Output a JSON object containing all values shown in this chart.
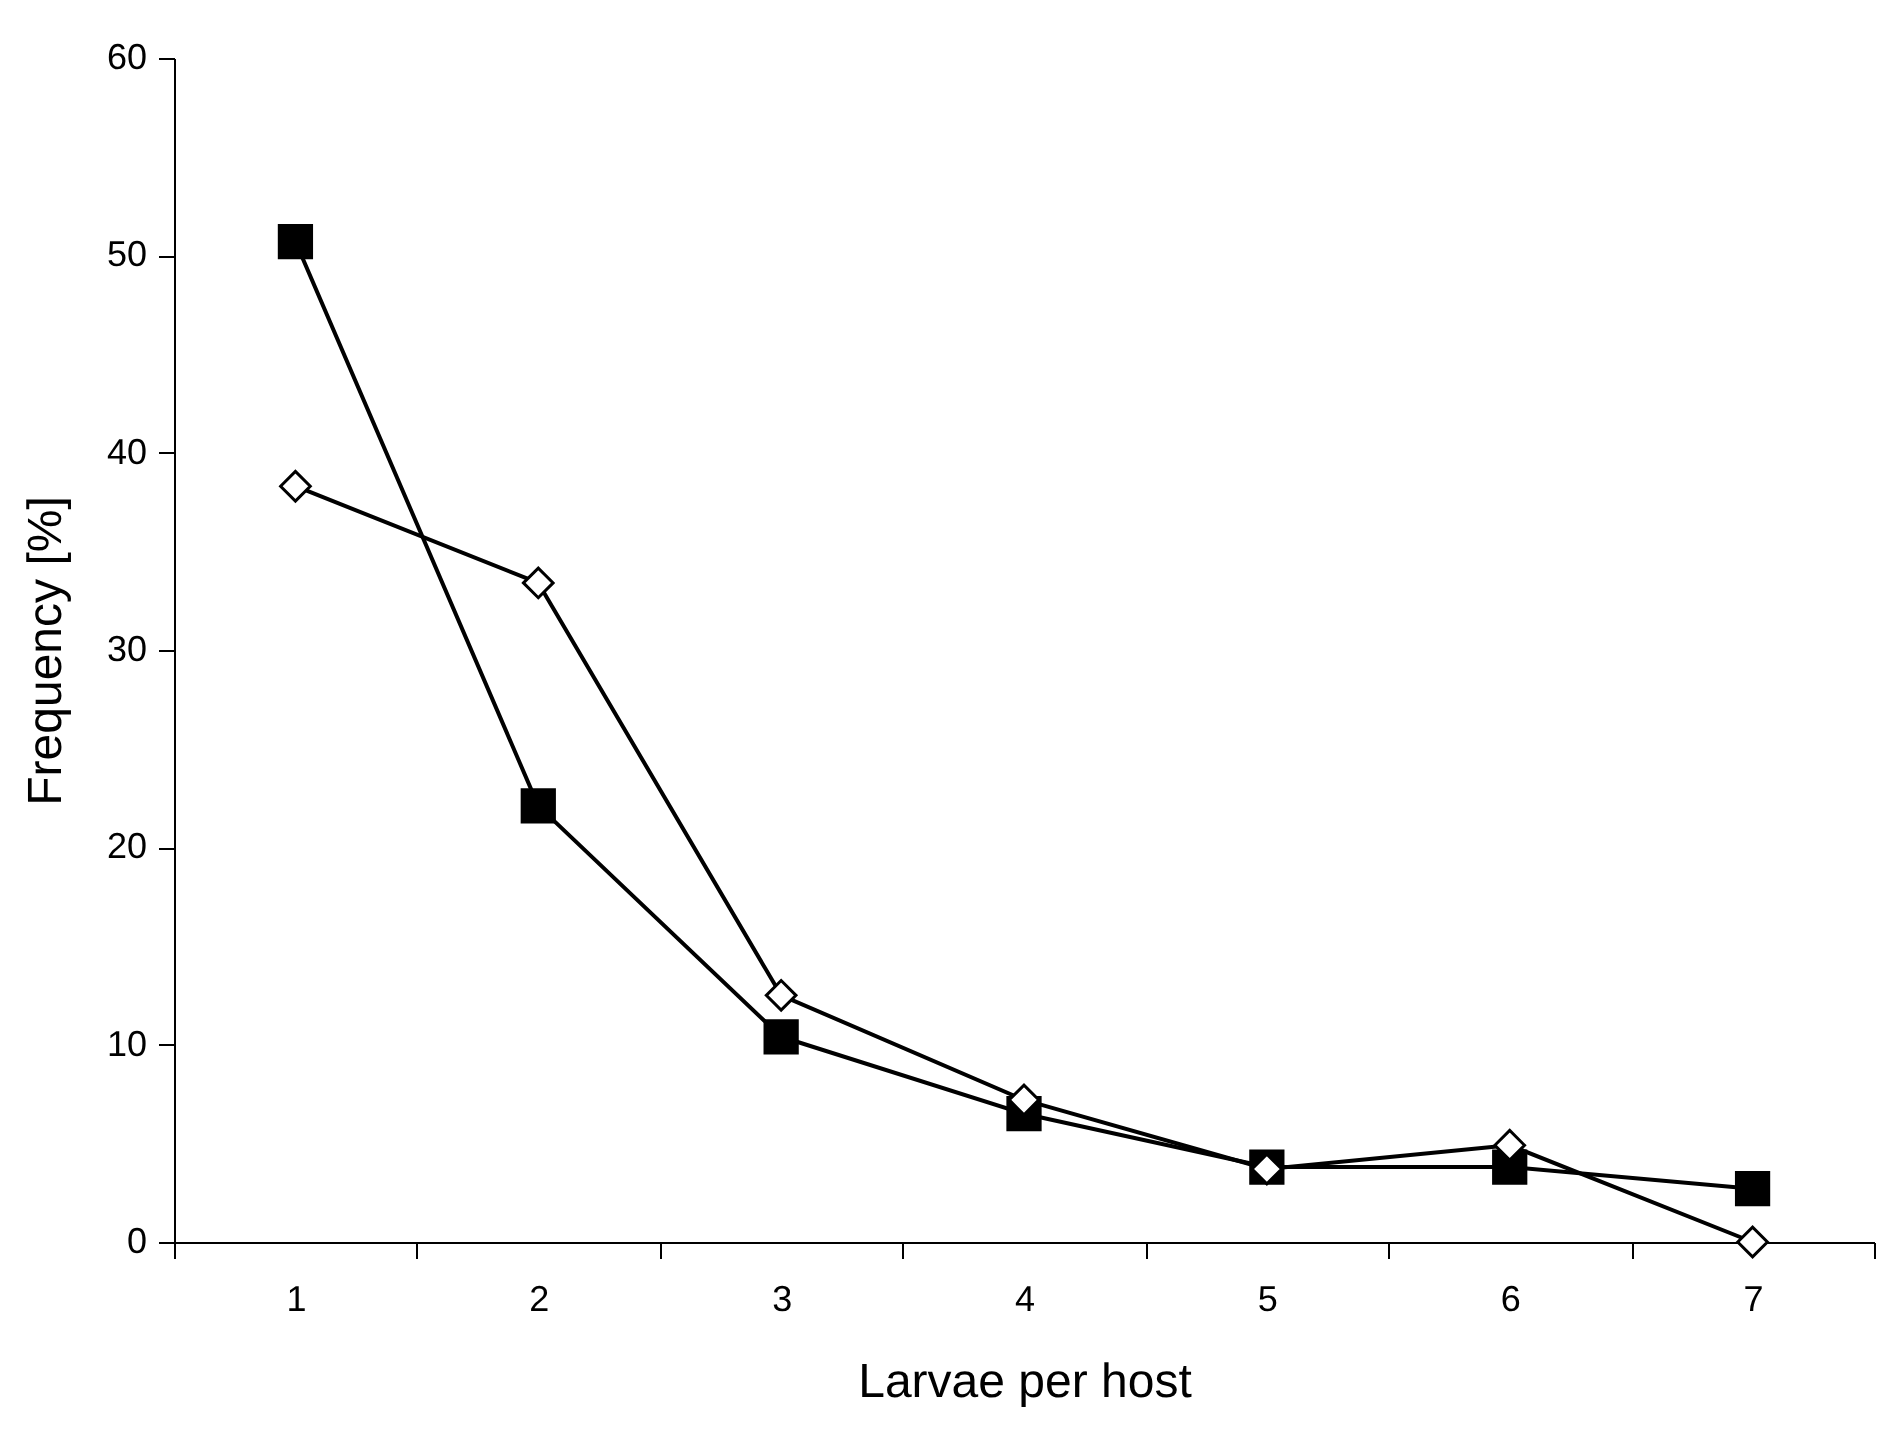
{
  "chart_data": {
    "type": "line",
    "xlabel": "Larvae per host",
    "ylabel": "Frequency [%]",
    "categories": [
      "1",
      "2",
      "3",
      "4",
      "5",
      "6",
      "7"
    ],
    "series": [
      {
        "color": "#000000",
        "marker": "square",
        "values": [
          50.7,
          22.1,
          10.4,
          6.5,
          3.8,
          3.8,
          2.7
        ]
      },
      {
        "color": "#000000",
        "marker": "diamond",
        "values": [
          38.3,
          33.4,
          12.5,
          7.2,
          3.7,
          4.9,
          0
        ]
      }
    ],
    "ylim": [
      0,
      60
    ],
    "yticks": [
      0,
      10,
      20,
      30,
      40,
      50,
      60
    ],
    "grid": false
  }
}
